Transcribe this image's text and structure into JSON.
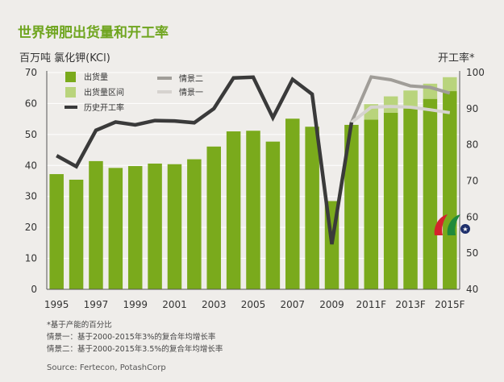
{
  "title": "世界钾肥出货量和开工率",
  "unit_left": "百万吨 氯化钾(KCl)",
  "unit_right": "开工率*",
  "notes": [
    "*基于产能的百分比",
    "情景一：基于2000-2015年3%的复合年均增长率",
    "情景二：基于2000-2015年3.5%的复合年均增长率"
  ],
  "source": "Source: Fertecon, PotashCorp",
  "chart_data": {
    "type": "bar",
    "categories": [
      "1995",
      "1996",
      "1997",
      "1998",
      "1999",
      "2000",
      "2001",
      "2002",
      "2003",
      "2004",
      "2005",
      "2006",
      "2007",
      "2008",
      "2009",
      "2010",
      "2011F",
      "2012F",
      "2013F",
      "2014F",
      "2015F"
    ],
    "x_tick_labels": [
      "1995",
      "1997",
      "1999",
      "2001",
      "2003",
      "2005",
      "2007",
      "2009",
      "2011F",
      "2013F",
      "2015F"
    ],
    "left_axis": {
      "min": 0,
      "max": 70,
      "ticks": [
        0,
        10,
        20,
        30,
        40,
        50,
        60,
        70
      ]
    },
    "right_axis": {
      "min": 40,
      "max": 100,
      "ticks": [
        40,
        50,
        60,
        70,
        80,
        90,
        100
      ]
    },
    "legend": [
      "出货量",
      "出货量区间",
      "历史开工率",
      "情景二",
      "情景一"
    ],
    "colors": {
      "shipments": "#7aaa1c",
      "range": "#b9d47c",
      "historical": "#3a3a3a",
      "scenario2": "#a09d98",
      "scenario1": "#d6d3cf",
      "grid": "#ffffff"
    },
    "series": [
      {
        "name": "出货量",
        "axis": "left",
        "values": [
          37.2,
          35.4,
          41.4,
          39.2,
          39.8,
          40.6,
          40.4,
          42.0,
          46.1,
          51.0,
          51.2,
          47.7,
          55.1,
          52.5,
          28.5,
          53.1,
          54.8,
          57.0,
          59.1,
          61.5,
          64.0
        ]
      },
      {
        "name": "出货量区间",
        "axis": "left",
        "base": [
          null,
          null,
          null,
          null,
          null,
          null,
          null,
          null,
          null,
          null,
          null,
          null,
          null,
          null,
          null,
          null,
          54.8,
          57.0,
          59.1,
          61.5,
          64.0
        ],
        "top": [
          null,
          null,
          null,
          null,
          null,
          null,
          null,
          null,
          null,
          null,
          null,
          null,
          null,
          null,
          null,
          null,
          59.8,
          62.3,
          64.2,
          66.4,
          68.5
        ]
      },
      {
        "name": "历史开工率",
        "axis": "right",
        "values": [
          77.0,
          74.0,
          84.0,
          86.3,
          85.5,
          86.7,
          86.6,
          86.1,
          90.0,
          98.5,
          98.7,
          87.5,
          98.1,
          94.0,
          52.5,
          86.2,
          null,
          null,
          null,
          null,
          null
        ]
      },
      {
        "name": "情景二",
        "axis": "right",
        "values": [
          null,
          null,
          null,
          null,
          null,
          null,
          null,
          null,
          null,
          null,
          null,
          null,
          null,
          null,
          null,
          86.2,
          98.8,
          98.0,
          96.3,
          95.9,
          94.3
        ]
      },
      {
        "name": "情景一",
        "axis": "right",
        "values": [
          null,
          null,
          null,
          null,
          null,
          null,
          null,
          null,
          null,
          null,
          null,
          null,
          null,
          null,
          null,
          86.2,
          90.4,
          90.6,
          90.4,
          89.7,
          88.9
        ]
      }
    ]
  }
}
